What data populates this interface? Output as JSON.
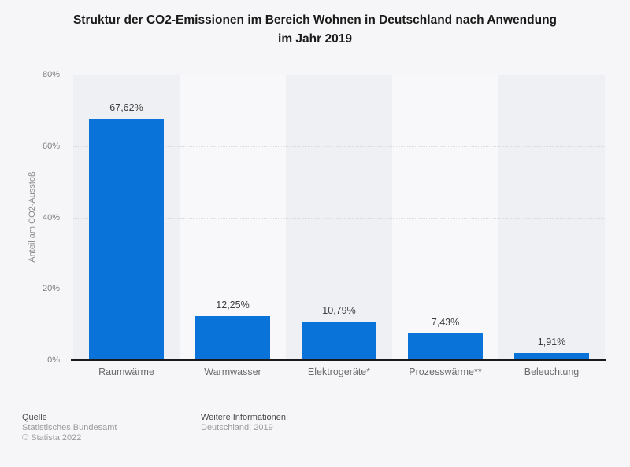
{
  "title_lines": [
    "Struktur der CO2-Emissionen im Bereich Wohnen in Deutschland nach Anwendung",
    "im Jahr 2019"
  ],
  "chart_data": {
    "type": "bar",
    "title": "Struktur der CO2-Emissionen im Bereich Wohnen in Deutschland nach Anwendung im Jahr 2019",
    "categories": [
      "Raumwärme",
      "Warmwasser",
      "Elektrogeräte*",
      "Prozesswärme**",
      "Beleuchtung"
    ],
    "values": [
      67.62,
      12.25,
      10.79,
      7.43,
      1.91
    ],
    "value_labels": [
      "67,62%",
      "12,25%",
      "10,79%",
      "7,43%",
      "1,91%"
    ],
    "xlabel": "",
    "ylabel": "Anteil am CO2-Ausstoß",
    "ylim": [
      0,
      80
    ],
    "yticks": [
      {
        "label": "80%",
        "value": 80
      },
      {
        "label": "60%",
        "value": 60
      },
      {
        "label": "40%",
        "value": 40
      },
      {
        "label": "20%",
        "value": 20
      },
      {
        "label": "0%",
        "value": 0
      }
    ],
    "grid": "horizontal dotted gridlines at 20/40/60/80%",
    "legend": "none"
  },
  "footer": {
    "source_heading": "Quelle",
    "source_name": "Statistisches Bundesamt",
    "copyright": "© Statista 2022",
    "info_heading": "Weitere Informationen:",
    "info_text": "Deutschland; 2019"
  },
  "colors": {
    "background": "#f6f6f8",
    "band_odd": "#eff0f3",
    "band_even": "#f8f8fa",
    "bar": "#0a73d9",
    "gridline": "#d9d9de",
    "axis": "#1a1a1a",
    "title_text": "#1a1a1a",
    "value_label_text": "#3d3d3d",
    "category_label_text": "#6b6b6b",
    "tick_text": "#7f7f7f"
  }
}
